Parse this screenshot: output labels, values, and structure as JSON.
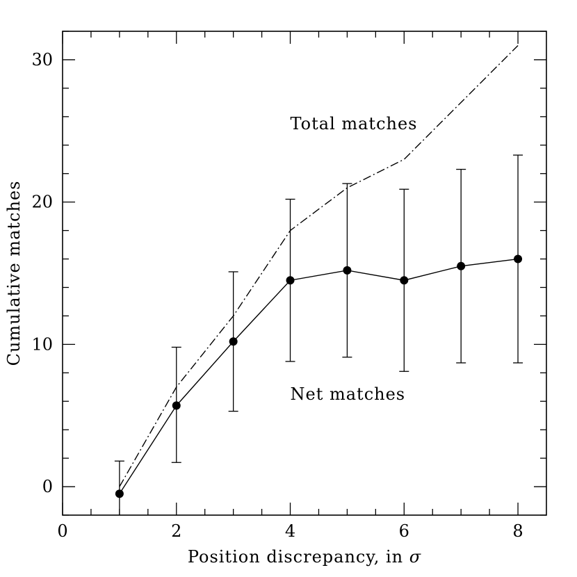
{
  "chart_data": {
    "type": "line",
    "xlabel_text": "Position discrepancy, in ",
    "xlabel_symbol": "σ",
    "ylabel": "Cumulative matches",
    "xlim": [
      0,
      8.5
    ],
    "ylim": [
      -2,
      32
    ],
    "x_ticks": [
      0,
      2,
      4,
      6,
      8
    ],
    "y_ticks": [
      0,
      10,
      20,
      30
    ],
    "grid": false,
    "series": [
      {
        "key": "total",
        "style": "dash-dot line",
        "x": [
          1,
          2,
          3,
          4,
          5,
          6,
          7,
          8
        ],
        "y": [
          0,
          7,
          12,
          18,
          21,
          23,
          27,
          31
        ]
      },
      {
        "key": "net",
        "style": "solid line with filled circle markers and error bars",
        "x": [
          1,
          2,
          3,
          4,
          5,
          6,
          7,
          8
        ],
        "y": [
          -0.5,
          5.7,
          10.2,
          14.5,
          15.2,
          14.5,
          15.5,
          16.0
        ],
        "err_low": [
          -2,
          1.7,
          5.3,
          8.8,
          9.1,
          8.1,
          8.7,
          8.7
        ],
        "err_high": [
          1.8,
          9.8,
          15.1,
          20.2,
          21.3,
          20.9,
          22.3,
          23.3
        ]
      }
    ],
    "annotations": [
      {
        "text": "Total matches",
        "x": 4.0,
        "y": 25.6
      },
      {
        "text": "Net matches",
        "x": 4.0,
        "y": 6.6
      }
    ]
  }
}
